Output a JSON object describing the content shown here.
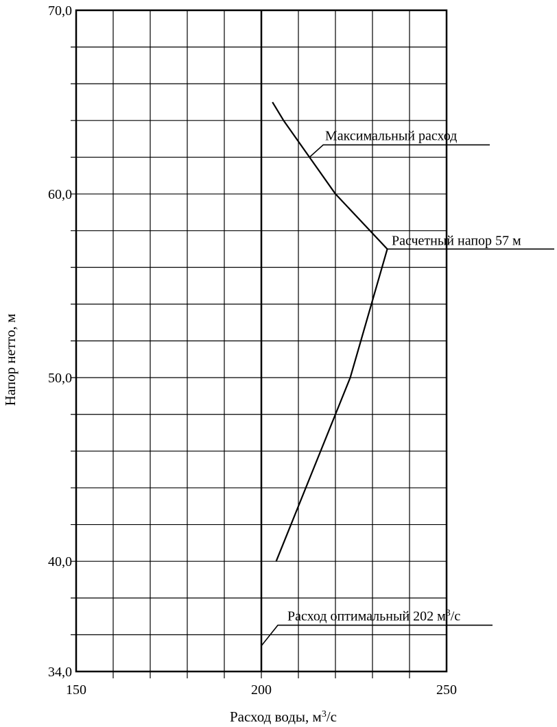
{
  "chart_data": {
    "type": "line",
    "title": "",
    "xlabel": "Расход воды, м³/с",
    "ylabel": "Напор нетто, м",
    "xlim": [
      150,
      250
    ],
    "ylim": [
      34,
      70
    ],
    "x_ticks": [
      150,
      200,
      250
    ],
    "x_tick_labels": [
      "150",
      "200",
      "250"
    ],
    "y_ticks": [
      34,
      40,
      50,
      60,
      70
    ],
    "y_tick_labels": [
      "34,0",
      "40,0",
      "50,0",
      "60,0",
      "70,0"
    ],
    "x_grid_step": 10,
    "y_grid_step": 2,
    "grid": true,
    "legend": "none",
    "series": [
      {
        "x": [
          204,
          214,
          224,
          234,
          220,
          206,
          203
        ],
        "y": [
          40,
          45,
          50,
          57,
          60,
          64,
          65
        ]
      }
    ],
    "reference_lines": [
      {
        "orientation": "vertical",
        "x": 200
      }
    ],
    "annotations": [
      {
        "text": "Максимальный расход",
        "x": 213,
        "y": 62
      },
      {
        "text": "Расчетный напор 57 м",
        "x": 234,
        "y": 57
      },
      {
        "text": "Расход оптимальный 202 м³/с",
        "x": 200,
        "y": 35.4
      }
    ]
  }
}
